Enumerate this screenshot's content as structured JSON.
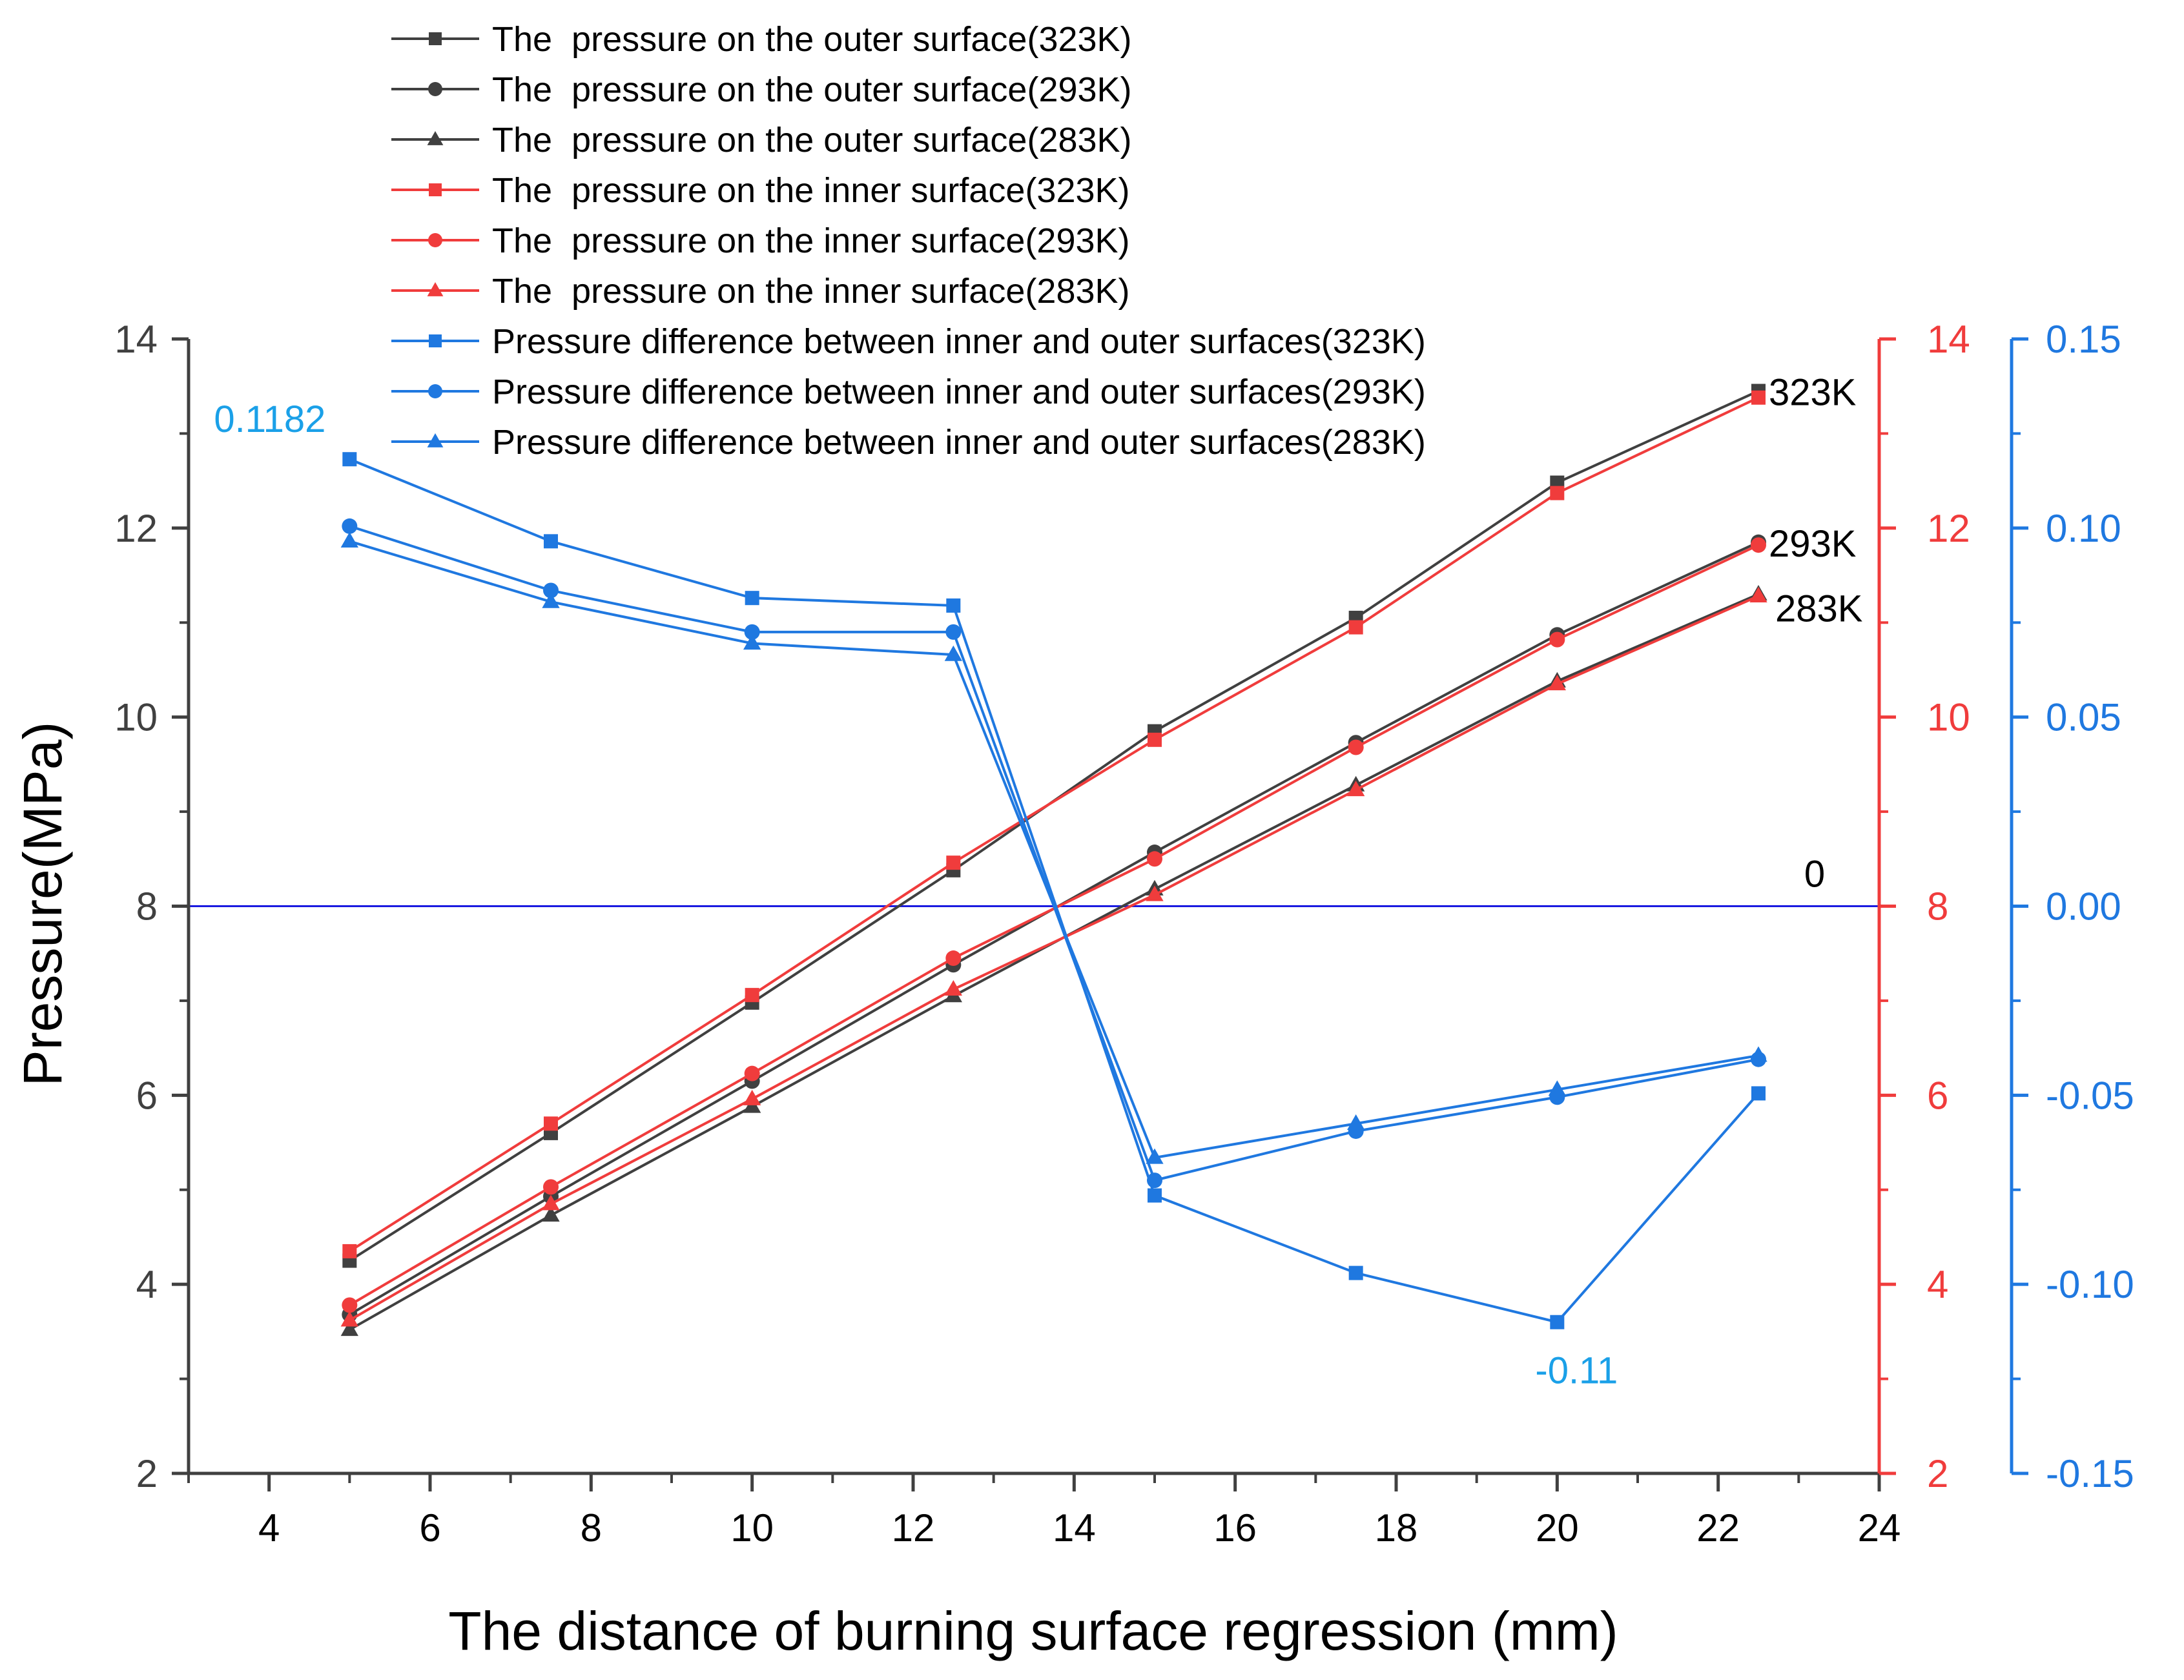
{
  "chart_data": {
    "type": "line",
    "xlabel": "The distance of burning surface regression (mm)",
    "ylabel": "Pressure(MPa)",
    "xlim": [
      3,
      24
    ],
    "ylim": [
      2,
      14
    ],
    "y2lim": [
      2,
      14
    ],
    "y3lim": [
      -0.15,
      0.15
    ],
    "x_ticks": [
      "4",
      "6",
      "8",
      "10",
      "12",
      "14",
      "16",
      "18",
      "20",
      "22",
      "24"
    ],
    "y_ticks": [
      "2",
      "4",
      "6",
      "8",
      "10",
      "12",
      "14"
    ],
    "y2_ticks": [
      "2",
      "4",
      "6",
      "8",
      "10",
      "12",
      "14"
    ],
    "y3_ticks": [
      "-0.15",
      "-0.10",
      "-0.05",
      "0.00",
      "0.05",
      "0.10",
      "0.15"
    ],
    "x": [
      5,
      7.5,
      10,
      12.5,
      15,
      17.5,
      20,
      22.5
    ],
    "colors": {
      "outer": "#404040",
      "inner": "#f03c3c",
      "difference": "#1f78e0",
      "zero_line": "#1a1ae0",
      "annotation_blue": "#1aa0e8",
      "axis_left": "#404040",
      "axis_red": "#f03c3c",
      "axis_blue": "#1f78e0"
    },
    "series": [
      {
        "name": "The  pressure on the outer surface(323K)",
        "group": "outer",
        "marker": "square",
        "axis": "left",
        "values": [
          4.25,
          5.6,
          6.98,
          8.38,
          9.85,
          11.05,
          12.48,
          13.45
        ]
      },
      {
        "name": "The  pressure on the outer surface(293K)",
        "group": "outer",
        "marker": "circle",
        "axis": "left",
        "values": [
          3.68,
          4.93,
          6.15,
          7.38,
          8.57,
          9.73,
          10.87,
          11.85
        ]
      },
      {
        "name": "The  pressure on the outer surface(283K)",
        "group": "outer",
        "marker": "triangle",
        "axis": "left",
        "values": [
          3.52,
          4.73,
          5.88,
          7.05,
          8.18,
          9.28,
          10.38,
          11.3
        ]
      },
      {
        "name": "The  pressure on the inner surface(323K)",
        "group": "inner",
        "marker": "square",
        "axis": "right",
        "values": [
          4.35,
          5.7,
          7.06,
          8.46,
          9.76,
          10.95,
          12.37,
          13.38
        ]
      },
      {
        "name": "The  pressure on the inner surface(293K)",
        "group": "inner",
        "marker": "circle",
        "axis": "right",
        "values": [
          3.78,
          5.03,
          6.23,
          7.45,
          8.5,
          9.68,
          10.82,
          11.82
        ]
      },
      {
        "name": "The  pressure on the inner surface(283K)",
        "group": "inner",
        "marker": "triangle",
        "axis": "right",
        "values": [
          3.62,
          4.85,
          5.96,
          7.12,
          8.12,
          9.23,
          10.35,
          11.28
        ]
      },
      {
        "name": "Pressure difference between inner and outer surfaces(323K)",
        "group": "difference",
        "marker": "square",
        "axis": "blue",
        "values": [
          0.1182,
          0.0965,
          0.0815,
          0.0795,
          -0.0765,
          -0.097,
          -0.11,
          -0.0495
        ]
      },
      {
        "name": "Pressure difference between inner and outer surfaces(293K)",
        "group": "difference",
        "marker": "circle",
        "axis": "blue",
        "values": [
          0.1005,
          0.0835,
          0.0725,
          0.0725,
          -0.0725,
          -0.0595,
          -0.0505,
          -0.0405
        ]
      },
      {
        "name": "Pressure difference between inner and outer surfaces(283K)",
        "group": "difference",
        "marker": "triangle",
        "axis": "blue",
        "values": [
          0.0965,
          0.0805,
          0.0695,
          0.0665,
          -0.0665,
          -0.0575,
          -0.0485,
          -0.0395
        ]
      }
    ],
    "annotations": [
      {
        "text": "323K",
        "anchor": "end-of-323K"
      },
      {
        "text": "293K",
        "anchor": "end-of-293K"
      },
      {
        "text": "283K",
        "anchor": "end-of-283K"
      },
      {
        "text": "0",
        "anchor": "zero-line-right"
      },
      {
        "text": "0.1182",
        "anchor": "first-difference-point"
      },
      {
        "text": "-0.11",
        "anchor": "min-difference-point"
      }
    ],
    "zero_line": {
      "blue_value": 0
    },
    "legend_position": "top-center"
  }
}
